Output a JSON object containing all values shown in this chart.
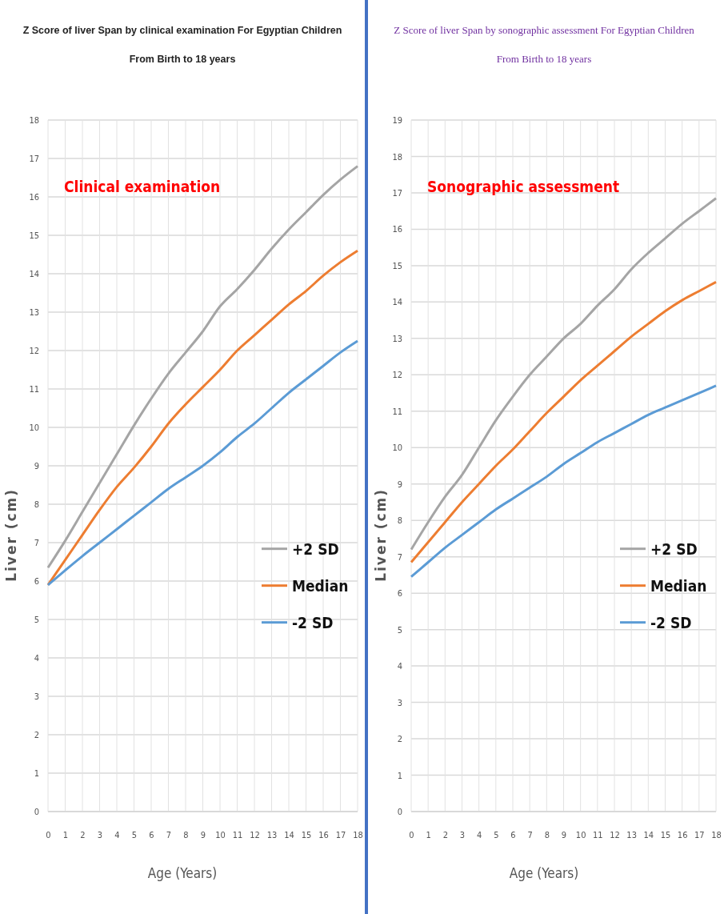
{
  "chart_data": [
    {
      "type": "line",
      "title": "Z Score of liver Span by clinical examination For Egyptian Children",
      "subtitle": "From Birth to 18 years",
      "xlabel": "Age (Years)",
      "ylabel": "Liver (cm)",
      "annotations": [
        "Clinical examination"
      ],
      "x": [
        0,
        1,
        2,
        3,
        4,
        5,
        6,
        7,
        8,
        9,
        10,
        11,
        12,
        13,
        14,
        15,
        16,
        17,
        18
      ],
      "series": [
        {
          "name": "+2 SD",
          "color": "#a5a5a5",
          "values": [
            6.35,
            7.05,
            7.8,
            8.55,
            9.3,
            10.05,
            10.75,
            11.4,
            11.95,
            12.5,
            13.15,
            13.6,
            14.1,
            14.65,
            15.15,
            15.6,
            16.05,
            16.45,
            16.8
          ]
        },
        {
          "name": "Median",
          "color": "#ed7d31",
          "values": [
            5.9,
            6.55,
            7.2,
            7.85,
            8.45,
            8.95,
            9.5,
            10.1,
            10.6,
            11.05,
            11.5,
            12.0,
            12.4,
            12.8,
            13.2,
            13.55,
            13.95,
            14.3,
            14.6
          ]
        },
        {
          "name": "-2 SD",
          "color": "#5b9bd5",
          "values": [
            5.9,
            6.28,
            6.65,
            7.0,
            7.35,
            7.7,
            8.05,
            8.4,
            8.7,
            9.0,
            9.35,
            9.75,
            10.1,
            10.5,
            10.9,
            11.25,
            11.6,
            11.95,
            12.25
          ]
        }
      ],
      "xlim": [
        0,
        18
      ],
      "xticks": [
        0,
        1,
        2,
        3,
        4,
        5,
        6,
        7,
        8,
        9,
        10,
        11,
        12,
        13,
        14,
        15,
        16,
        17,
        18
      ],
      "ylim": [
        0,
        18
      ],
      "yticks": [
        0,
        1,
        2,
        3,
        4,
        5,
        6,
        7,
        8,
        9,
        10,
        11,
        12,
        13,
        14,
        15,
        16,
        17,
        18
      ],
      "grid": true,
      "legend": "right",
      "marker": "none",
      "line_style": "solid"
    },
    {
      "type": "line",
      "title": "Z Score of liver Span by sonographic assessment For Egyptian Children",
      "subtitle": "From Birth to 18 years",
      "xlabel": "Age (Years)",
      "ylabel": "Liver (cm)",
      "annotations": [
        "Sonographic assessment"
      ],
      "x": [
        0,
        1,
        2,
        3,
        4,
        5,
        6,
        7,
        8,
        9,
        10,
        11,
        12,
        13,
        14,
        15,
        16,
        17,
        18
      ],
      "series": [
        {
          "name": "+2 SD",
          "color": "#a5a5a5",
          "values": [
            7.2,
            7.95,
            8.65,
            9.25,
            10.0,
            10.75,
            11.4,
            12.0,
            12.5,
            13.0,
            13.4,
            13.9,
            14.35,
            14.9,
            15.35,
            15.75,
            16.15,
            16.5,
            16.85
          ]
        },
        {
          "name": "Median",
          "color": "#ed7d31",
          "values": [
            6.85,
            7.4,
            7.95,
            8.5,
            9.0,
            9.5,
            9.95,
            10.45,
            10.95,
            11.4,
            11.85,
            12.25,
            12.65,
            13.05,
            13.4,
            13.75,
            14.05,
            14.3,
            14.55
          ]
        },
        {
          "name": "-2 SD",
          "color": "#5b9bd5",
          "values": [
            6.45,
            6.85,
            7.25,
            7.6,
            7.95,
            8.3,
            8.6,
            8.9,
            9.2,
            9.55,
            9.85,
            10.15,
            10.4,
            10.65,
            10.9,
            11.1,
            11.3,
            11.5,
            11.7
          ]
        }
      ],
      "xlim": [
        0,
        18
      ],
      "xticks": [
        0,
        1,
        2,
        3,
        4,
        5,
        6,
        7,
        8,
        9,
        10,
        11,
        12,
        13,
        14,
        15,
        16,
        17,
        18
      ],
      "ylim": [
        0,
        19
      ],
      "yticks": [
        0,
        1,
        2,
        3,
        4,
        5,
        6,
        7,
        8,
        9,
        10,
        11,
        12,
        13,
        14,
        15,
        16,
        17,
        18,
        19
      ],
      "grid": true,
      "legend": "right",
      "marker": "none",
      "line_style": "solid"
    }
  ]
}
